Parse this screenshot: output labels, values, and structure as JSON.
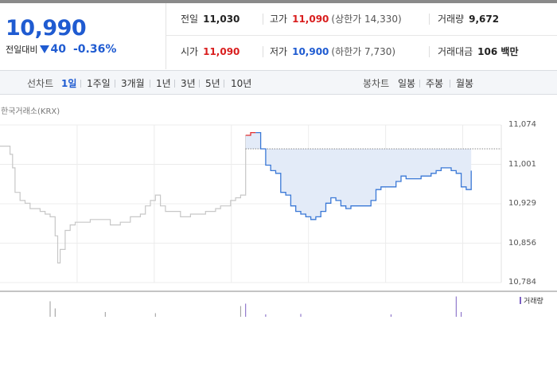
{
  "quote": {
    "price": "10,990",
    "change_label": "전일대비",
    "change_value": "40",
    "change_rate": "-0.36%"
  },
  "info": {
    "prev_close_label": "전일",
    "prev_close": "11,030",
    "high_label": "고가",
    "high": "11,090",
    "upper_limit": "(상한가 14,330)",
    "volume_label": "거래량",
    "volume": "9,672",
    "open_label": "시가",
    "open": "11,090",
    "low_label": "저가",
    "low": "10,900",
    "lower_limit": "(하한가 7,730)",
    "amount_label": "거래대금",
    "amount": "106 백만"
  },
  "period_tabs": {
    "title": "선차트",
    "items": [
      "1일",
      "1주일",
      "3개월",
      "1년",
      "3년",
      "5년",
      "10년"
    ],
    "active": "1일"
  },
  "candle_tabs": {
    "title": "봉차트",
    "items": [
      "일봉",
      "주봉",
      "월봉"
    ]
  },
  "chart_data": {
    "type": "line",
    "source": "한국거래소(KRX)",
    "y_ticks": [
      "11,074",
      "11,001",
      "10,929",
      "10,856",
      "10,784"
    ],
    "ylim": [
      10784,
      11074
    ],
    "prev_close": 11030,
    "volume_legend": "거래량",
    "colors": {
      "prev_day": "#c7c7c7",
      "today": "#3a78d6",
      "today_fill": "#e3ebf8",
      "up": "#e03030",
      "volume": "#7b5fc2"
    },
    "prev_day_series": [
      [
        0,
        11035
      ],
      [
        1.5,
        11035
      ],
      [
        2,
        11020
      ],
      [
        2.5,
        10995
      ],
      [
        3,
        10950
      ],
      [
        4,
        10935
      ],
      [
        5,
        10930
      ],
      [
        6,
        10920
      ],
      [
        7,
        10920
      ],
      [
        8,
        10915
      ],
      [
        9,
        10910
      ],
      [
        10,
        10905
      ],
      [
        11,
        10870
      ],
      [
        11.5,
        10820
      ],
      [
        12,
        10845
      ],
      [
        13,
        10880
      ],
      [
        14,
        10890
      ],
      [
        15,
        10895
      ],
      [
        17,
        10895
      ],
      [
        18,
        10900
      ],
      [
        20,
        10900
      ],
      [
        22,
        10890
      ],
      [
        24,
        10895
      ],
      [
        26,
        10905
      ],
      [
        28,
        10910
      ],
      [
        29,
        10925
      ],
      [
        30,
        10935
      ],
      [
        31,
        10945
      ],
      [
        32,
        10925
      ],
      [
        33,
        10915
      ],
      [
        35,
        10915
      ],
      [
        36,
        10905
      ],
      [
        38,
        10910
      ],
      [
        40,
        10910
      ],
      [
        41,
        10915
      ],
      [
        43,
        10920
      ],
      [
        44,
        10925
      ],
      [
        46,
        10935
      ],
      [
        47,
        10940
      ],
      [
        48,
        10945
      ],
      [
        49,
        11055
      ]
    ],
    "today_series": [
      [
        49,
        11055
      ],
      [
        50,
        11060
      ],
      [
        51,
        11060
      ],
      [
        52,
        11030
      ],
      [
        53,
        11000
      ],
      [
        54,
        10990
      ],
      [
        55,
        10985
      ],
      [
        56,
        10950
      ],
      [
        57,
        10945
      ],
      [
        58,
        10925
      ],
      [
        59,
        10915
      ],
      [
        60,
        10910
      ],
      [
        61,
        10905
      ],
      [
        62,
        10900
      ],
      [
        63,
        10905
      ],
      [
        64,
        10915
      ],
      [
        65,
        10930
      ],
      [
        66,
        10940
      ],
      [
        67,
        10935
      ],
      [
        68,
        10925
      ],
      [
        69,
        10920
      ],
      [
        70,
        10925
      ],
      [
        72,
        10925
      ],
      [
        74,
        10935
      ],
      [
        75,
        10955
      ],
      [
        76,
        10960
      ],
      [
        78,
        10960
      ],
      [
        79,
        10970
      ],
      [
        80,
        10980
      ],
      [
        81,
        10975
      ],
      [
        83,
        10975
      ],
      [
        84,
        10980
      ],
      [
        86,
        10985
      ],
      [
        87,
        10990
      ],
      [
        88,
        10995
      ],
      [
        89,
        10995
      ],
      [
        90,
        10990
      ],
      [
        91,
        10985
      ],
      [
        92,
        10960
      ],
      [
        93,
        10955
      ],
      [
        94,
        10990
      ]
    ],
    "volume_spikes": [
      [
        10,
        0.65
      ],
      [
        11,
        0.35
      ],
      [
        21,
        0.2
      ],
      [
        31,
        0.15
      ],
      [
        48,
        0.45
      ],
      [
        49,
        0.55
      ],
      [
        53,
        0.1
      ],
      [
        60,
        0.12
      ],
      [
        78,
        0.1
      ],
      [
        91,
        0.85
      ],
      [
        92,
        0.2
      ]
    ]
  }
}
